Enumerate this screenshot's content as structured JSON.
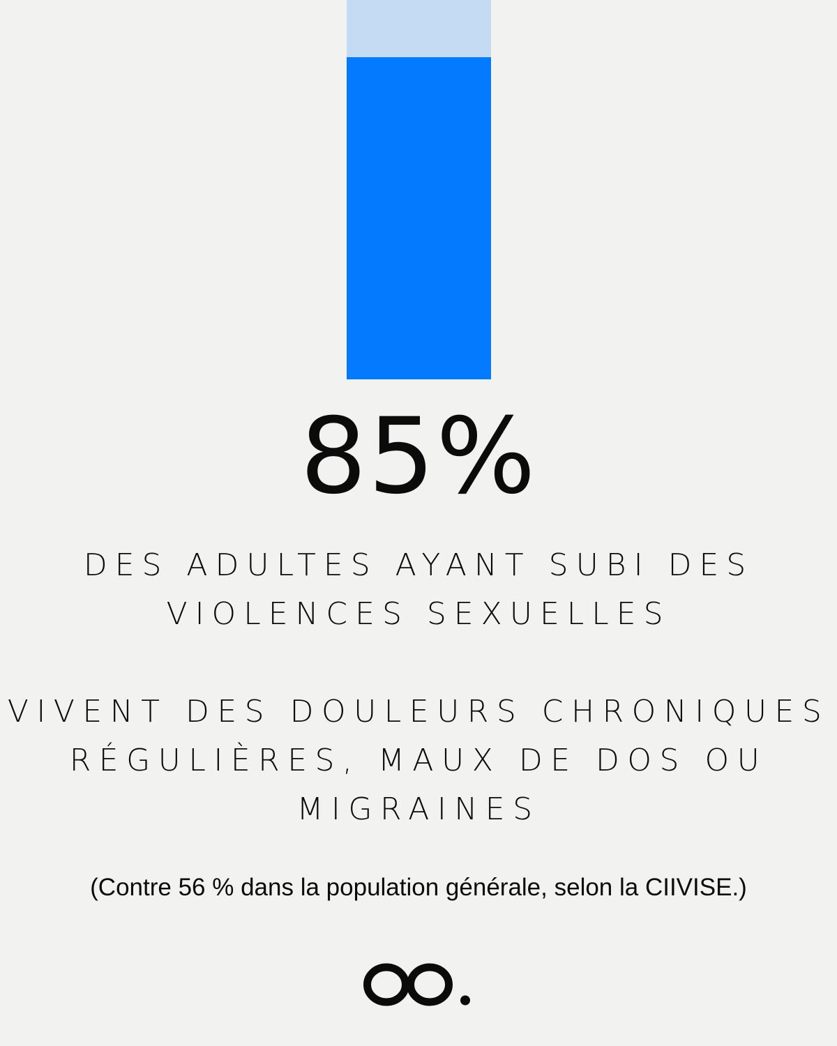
{
  "stat": {
    "value_label": "85%",
    "fill_fraction": 0.85
  },
  "caption": {
    "part_one": [
      "DES ADULTES AYANT SUBI DES",
      "VIOLENCES SEXUELLES"
    ],
    "part_two": [
      "VIVENT DES DOULEURS CHRONIQUES",
      "RÉGULIÈRES, MAUX DE DOS OU",
      "MIGRAINES"
    ]
  },
  "footnote": "(Contre 56 % dans la population générale, selon la CIIVISE.)",
  "logo": {
    "icon": "oo-logo-icon",
    "color": "#0b0b0b"
  },
  "colors": {
    "background": "#f2f2f0",
    "bar_track": "#c5dbf4",
    "bar_fill": "#037aff"
  }
}
